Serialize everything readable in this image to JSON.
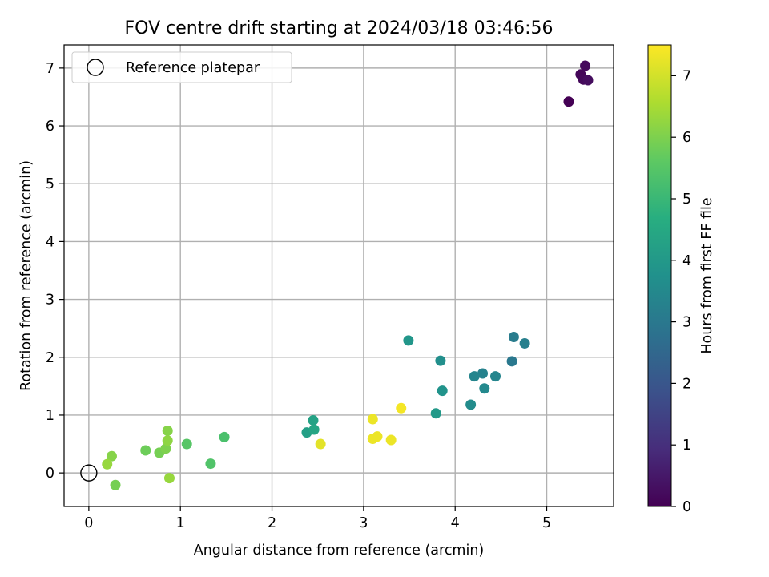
{
  "chart_data": {
    "type": "scatter",
    "title": "FOV centre drift starting at 2024/03/18 03:46:56",
    "xlabel": "Angular distance from reference (arcmin)",
    "ylabel": "Rotation from reference (arcmin)",
    "xlim": [
      -0.27,
      5.73
    ],
    "ylim": [
      -0.58,
      7.4
    ],
    "xticks": [
      0,
      1,
      2,
      3,
      4,
      5
    ],
    "yticks": [
      0,
      1,
      2,
      3,
      4,
      5,
      6,
      7
    ],
    "grid": true,
    "legend": {
      "placement": "upper-left",
      "entries": [
        "Reference platepar"
      ]
    },
    "reference_point": {
      "x": 0,
      "y": 0,
      "label": "Reference platepar"
    },
    "colorbar": {
      "label": "Hours from first FF file",
      "colormap": "viridis",
      "range": [
        0,
        7.5
      ],
      "ticks": [
        0,
        1,
        2,
        3,
        4,
        5,
        6,
        7
      ]
    },
    "points": [
      {
        "x": 5.24,
        "y": 6.42,
        "c": 0.0
      },
      {
        "x": 5.37,
        "y": 6.89,
        "c": 0.1
      },
      {
        "x": 5.4,
        "y": 6.8,
        "c": 0.15
      },
      {
        "x": 5.42,
        "y": 7.04,
        "c": 0.2
      },
      {
        "x": 5.45,
        "y": 6.79,
        "c": 0.25
      },
      {
        "x": 4.62,
        "y": 1.93,
        "c": 3.0
      },
      {
        "x": 4.64,
        "y": 2.35,
        "c": 3.1
      },
      {
        "x": 4.76,
        "y": 2.24,
        "c": 3.2
      },
      {
        "x": 4.3,
        "y": 1.72,
        "c": 3.3
      },
      {
        "x": 4.44,
        "y": 1.67,
        "c": 3.4
      },
      {
        "x": 4.21,
        "y": 1.67,
        "c": 3.4
      },
      {
        "x": 4.32,
        "y": 1.46,
        "c": 3.5
      },
      {
        "x": 4.17,
        "y": 1.18,
        "c": 3.6
      },
      {
        "x": 3.84,
        "y": 1.94,
        "c": 3.7
      },
      {
        "x": 3.86,
        "y": 1.42,
        "c": 3.8
      },
      {
        "x": 3.49,
        "y": 2.29,
        "c": 3.9
      },
      {
        "x": 3.79,
        "y": 1.03,
        "c": 4.0
      },
      {
        "x": 2.38,
        "y": 0.7,
        "c": 4.2
      },
      {
        "x": 2.45,
        "y": 0.91,
        "c": 4.3
      },
      {
        "x": 2.46,
        "y": 0.75,
        "c": 4.4
      },
      {
        "x": 1.48,
        "y": 0.62,
        "c": 5.3
      },
      {
        "x": 1.33,
        "y": 0.16,
        "c": 5.4
      },
      {
        "x": 1.07,
        "y": 0.5,
        "c": 5.5
      },
      {
        "x": 0.62,
        "y": 0.39,
        "c": 5.8
      },
      {
        "x": 0.77,
        "y": 0.35,
        "c": 5.9
      },
      {
        "x": 0.84,
        "y": 0.42,
        "c": 6.0
      },
      {
        "x": 0.86,
        "y": 0.73,
        "c": 6.1
      },
      {
        "x": 0.86,
        "y": 0.56,
        "c": 6.2
      },
      {
        "x": 0.88,
        "y": -0.09,
        "c": 6.3
      },
      {
        "x": 0.29,
        "y": -0.21,
        "c": 5.9
      },
      {
        "x": 0.25,
        "y": 0.29,
        "c": 6.1
      },
      {
        "x": 0.2,
        "y": 0.15,
        "c": 6.3
      },
      {
        "x": 2.53,
        "y": 0.5,
        "c": 7.2
      },
      {
        "x": 3.1,
        "y": 0.93,
        "c": 7.3
      },
      {
        "x": 3.1,
        "y": 0.59,
        "c": 7.3
      },
      {
        "x": 3.15,
        "y": 0.63,
        "c": 7.3
      },
      {
        "x": 3.3,
        "y": 0.57,
        "c": 7.3
      },
      {
        "x": 3.41,
        "y": 1.12,
        "c": 7.4
      }
    ]
  }
}
